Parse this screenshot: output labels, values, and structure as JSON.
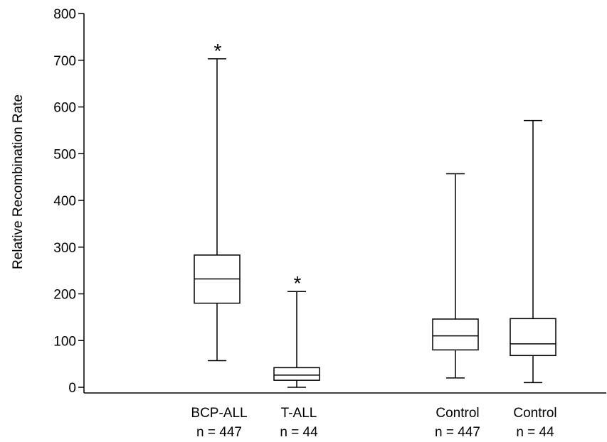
{
  "chart_data": {
    "type": "box",
    "ylabel": "Relative Recombination Rate",
    "ylim": [
      0,
      800
    ],
    "yticks": [
      0,
      100,
      200,
      300,
      400,
      500,
      600,
      700,
      800
    ],
    "grid": false,
    "groups": [
      {
        "label": "BCP-ALL",
        "n_label": "n = 447",
        "whisker_low": 57,
        "q1": 180,
        "median": 232,
        "q3": 283,
        "whisker_high": 703,
        "significance": "*"
      },
      {
        "label": "T-ALL",
        "n_label": "n = 44",
        "whisker_low": 0,
        "q1": 15,
        "median": 26,
        "q3": 42,
        "whisker_high": 205,
        "significance": "*"
      },
      {
        "label": "Control",
        "n_label": "n = 447",
        "whisker_low": 20,
        "q1": 80,
        "median": 110,
        "q3": 146,
        "whisker_high": 457,
        "significance": ""
      },
      {
        "label": "Control",
        "n_label": "n = 44",
        "whisker_low": 10,
        "q1": 68,
        "median": 93,
        "q3": 147,
        "whisker_high": 571,
        "significance": ""
      }
    ]
  }
}
